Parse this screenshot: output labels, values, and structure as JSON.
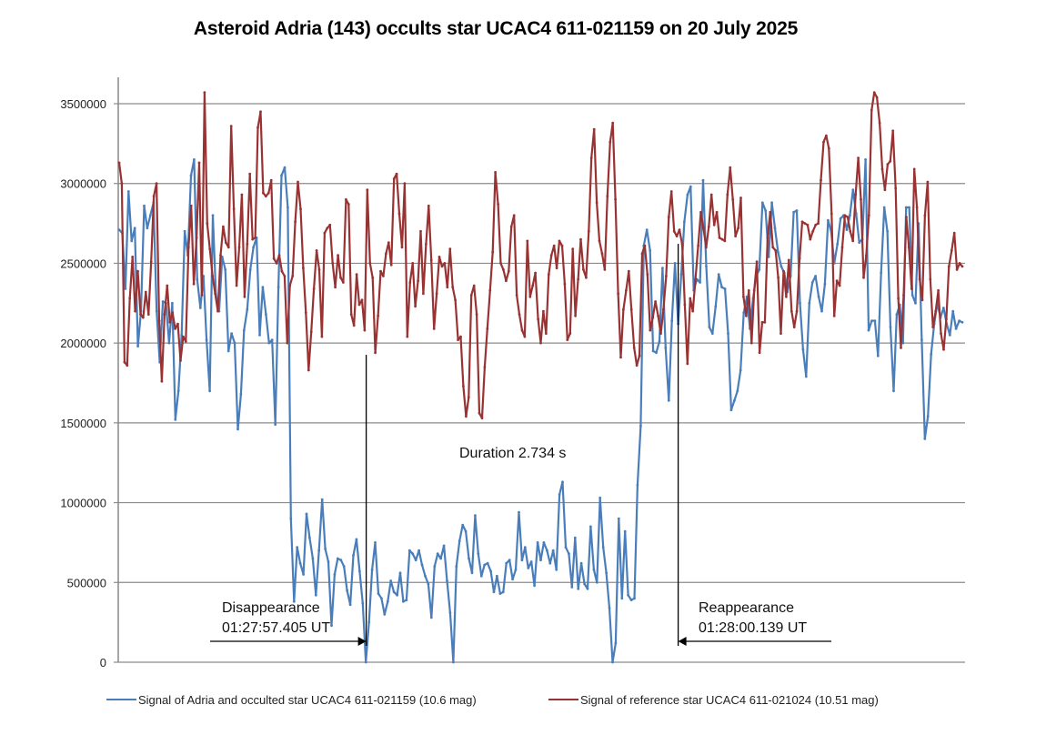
{
  "chart_data": {
    "type": "line",
    "title": "Asteroid Adria (143) occults star UCAC4 611-021159 on 20 July 2025",
    "xlabel": "",
    "ylabel": "",
    "ylim": [
      0,
      3500000
    ],
    "yticks": [
      "0",
      "500000",
      "1000000",
      "1500000",
      "2000000",
      "2500000",
      "3000000",
      "3500000"
    ],
    "ytick_values": [
      0,
      500000,
      1000000,
      1500000,
      2000000,
      2500000,
      3000000,
      3500000
    ],
    "grid": true,
    "legend_position": "bottom",
    "series": [
      {
        "name": "Signal of Adria and occulted star UCAC4 611-021159 (10.6 mag)",
        "color": "#4a7ebb",
        "values": [
          2710000,
          2690000,
          2340000,
          2950000,
          2640000,
          2720000,
          1980000,
          2200000,
          2860000,
          2720000,
          2800000,
          2880000,
          2200000,
          1880000,
          2260000,
          2250000,
          2000000,
          2250000,
          1520000,
          1700000,
          2050000,
          2700000,
          2550000,
          3050000,
          3150000,
          2400000,
          2220000,
          2420000,
          2020000,
          1700000,
          2800000,
          2300000,
          2200000,
          2540000,
          2460000,
          1950000,
          2060000,
          2000000,
          1460000,
          1680000,
          2080000,
          2210000,
          2460000,
          2600000,
          2660000,
          2050000,
          2350000,
          2180000,
          2000000,
          2020000,
          1490000,
          2350000,
          3050000,
          3100000,
          2850000,
          900000,
          380000,
          720000,
          620000,
          550000,
          930000,
          780000,
          650000,
          420000,
          700000,
          1020000,
          710000,
          630000,
          230000,
          550000,
          650000,
          640000,
          600000,
          450000,
          360000,
          670000,
          770000,
          570000,
          370000,
          0,
          250000,
          580000,
          750000,
          430000,
          400000,
          300000,
          380000,
          510000,
          440000,
          420000,
          560000,
          380000,
          390000,
          700000,
          680000,
          640000,
          700000,
          610000,
          540000,
          490000,
          280000,
          600000,
          680000,
          650000,
          730000,
          510000,
          310000,
          0,
          600000,
          760000,
          860000,
          820000,
          650000,
          560000,
          920000,
          680000,
          540000,
          610000,
          620000,
          570000,
          440000,
          540000,
          430000,
          440000,
          620000,
          640000,
          520000,
          580000,
          940000,
          640000,
          720000,
          590000,
          630000,
          480000,
          750000,
          640000,
          750000,
          700000,
          620000,
          700000,
          580000,
          1050000,
          1130000,
          720000,
          680000,
          470000,
          780000,
          460000,
          620000,
          490000,
          460000,
          850000,
          580000,
          500000,
          1030000,
          720000,
          560000,
          340000,
          0,
          120000,
          900000,
          400000,
          820000,
          420000,
          390000,
          400000,
          1110000,
          1480000,
          2610000,
          2710000,
          2580000,
          1950000,
          1940000,
          2010000,
          2470000,
          1970000,
          1640000,
          2140000,
          2500000,
          2120000,
          2430000,
          2760000,
          2930000,
          2980000,
          2330000,
          2400000,
          2380000,
          3020000,
          2480000,
          2100000,
          2060000,
          2230000,
          2430000,
          2350000,
          2340000,
          2060000,
          1580000,
          1640000,
          1700000,
          1830000,
          2190000,
          2290000,
          2090000,
          2280000,
          2420000,
          2460000,
          2880000,
          2830000,
          2540000,
          2880000,
          2720000,
          2570000,
          2480000,
          2440000,
          2320000,
          2420000,
          2820000,
          2830000,
          2250000,
          1960000,
          1790000,
          2250000,
          2380000,
          2420000,
          2290000,
          2200000,
          2370000,
          2770000,
          2700000,
          2500000,
          2620000,
          2780000,
          2800000,
          2710000,
          2800000,
          2960000,
          2810000,
          2630000,
          2650000,
          3150000,
          2080000,
          2140000,
          2140000,
          1920000,
          2440000,
          2850000,
          2700000,
          2100000,
          1700000,
          2180000,
          2240000,
          2000000,
          2850000,
          2850000,
          2300000,
          2250000,
          2750000,
          2020000,
          1400000,
          1540000,
          1930000,
          2120000,
          2250000,
          2160000,
          2220000,
          2120000,
          2050000,
          2200000,
          2090000,
          2140000,
          2130000
        ]
      },
      {
        "name": "Signal of reference star UCAC4 611-021024 (10.51 mag)",
        "color": "#993333",
        "values": [
          3130000,
          3000000,
          1880000,
          1860000,
          2280000,
          2540000,
          2200000,
          2450000,
          2180000,
          2160000,
          2320000,
          2180000,
          2510000,
          2920000,
          3000000,
          2140000,
          1760000,
          2180000,
          2360000,
          2130000,
          2190000,
          2090000,
          2120000,
          1890000,
          2040000,
          2010000,
          2600000,
          2860000,
          2370000,
          2660000,
          3130000,
          2300000,
          3570000,
          2750000,
          2590000,
          2420000,
          2310000,
          2200000,
          2550000,
          2730000,
          2630000,
          2600000,
          3360000,
          2840000,
          2360000,
          2600000,
          2930000,
          2290000,
          2620000,
          3060000,
          2650000,
          2660000,
          3350000,
          3450000,
          2940000,
          2920000,
          2940000,
          3020000,
          2530000,
          2500000,
          2550000,
          2450000,
          2420000,
          2000000,
          2360000,
          2420000,
          2760000,
          3010000,
          2840000,
          2470000,
          2190000,
          1830000,
          2070000,
          2340000,
          2580000,
          2460000,
          2040000,
          2690000,
          2720000,
          2740000,
          2500000,
          2350000,
          2550000,
          2410000,
          2380000,
          2900000,
          2870000,
          2180000,
          2110000,
          2430000,
          2240000,
          2270000,
          2080000,
          2960000,
          2500000,
          2410000,
          1940000,
          2170000,
          2450000,
          2420000,
          2560000,
          2630000,
          2490000,
          3030000,
          3060000,
          2810000,
          2600000,
          3000000,
          2040000,
          2380000,
          2500000,
          2230000,
          2390000,
          2700000,
          2310000,
          2620000,
          2860000,
          2520000,
          2090000,
          2310000,
          2540000,
          2480000,
          2500000,
          2350000,
          2590000,
          2350000,
          2270000,
          2020000,
          2040000,
          1730000,
          1540000,
          1660000,
          2300000,
          2360000,
          2180000,
          1560000,
          1530000,
          1850000,
          2090000,
          2330000,
          2570000,
          3070000,
          2870000,
          2500000,
          2460000,
          2390000,
          2450000,
          2730000,
          2800000,
          2300000,
          2180000,
          2080000,
          2040000,
          2640000,
          2290000,
          2360000,
          2440000,
          2150000,
          2000000,
          2200000,
          2060000,
          2430000,
          2550000,
          2610000,
          2470000,
          2640000,
          2610000,
          2370000,
          2020000,
          2060000,
          2590000,
          2170000,
          2400000,
          2650000,
          2460000,
          2410000,
          2700000,
          3160000,
          3340000,
          2880000,
          2640000,
          2560000,
          2460000,
          2920000,
          3260000,
          3380000,
          2900000,
          2310000,
          1910000,
          2210000,
          2330000,
          2450000,
          2210000,
          1970000,
          1860000,
          1920000,
          2560000,
          2610000,
          2430000,
          2080000,
          2160000,
          2260000,
          2170000,
          2060000,
          2210000,
          2420000,
          2790000,
          2950000,
          2700000,
          2670000,
          2710000,
          2620000,
          2240000,
          1870000,
          2280000,
          2200000,
          2400000,
          2610000,
          2820000,
          2720000,
          2600000,
          2730000,
          2930000,
          2740000,
          2820000,
          2660000,
          2650000,
          2640000,
          2930000,
          3100000,
          2900000,
          2670000,
          2720000,
          2910000,
          2290000,
          2170000,
          2330000,
          2000000,
          2330000,
          2510000,
          1940000,
          2130000,
          2130000,
          2660000,
          2820000,
          2600000,
          2580000,
          2410000,
          2060000,
          2450000,
          2290000,
          2520000,
          2200000,
          2100000,
          2200000,
          2530000,
          2760000,
          2750000,
          2740000,
          2650000,
          2700000,
          2740000,
          2750000,
          3020000,
          3260000,
          3300000,
          3220000,
          2810000,
          2170000,
          2390000,
          2360000,
          2600000,
          2800000,
          2790000,
          2700000,
          2640000,
          2930000,
          3160000,
          2900000,
          2410000,
          2550000,
          2800000,
          3460000,
          3570000,
          3540000,
          3380000,
          3090000,
          2960000,
          3120000,
          3140000,
          3330000,
          2970000,
          2280000,
          1970000,
          2300000,
          2790000,
          2600000,
          2340000,
          3090000,
          2850000,
          2400000,
          2270000,
          2800000,
          3010000,
          2400000,
          2100000,
          2200000,
          2330000,
          2060000,
          1960000,
          2150000,
          2480000,
          2580000,
          2690000,
          2460000,
          2500000,
          2480000
        ]
      }
    ],
    "annotations": {
      "duration": "Duration 2.734 s",
      "disappearance_label": "Disappearance",
      "disappearance_time": "01:27:57.405 UT",
      "reappearance_label": "Reappearance",
      "reappearance_time": "01:28:00.139 UT",
      "disappearance_fraction": 0.293,
      "reappearance_fraction": 0.663
    }
  }
}
